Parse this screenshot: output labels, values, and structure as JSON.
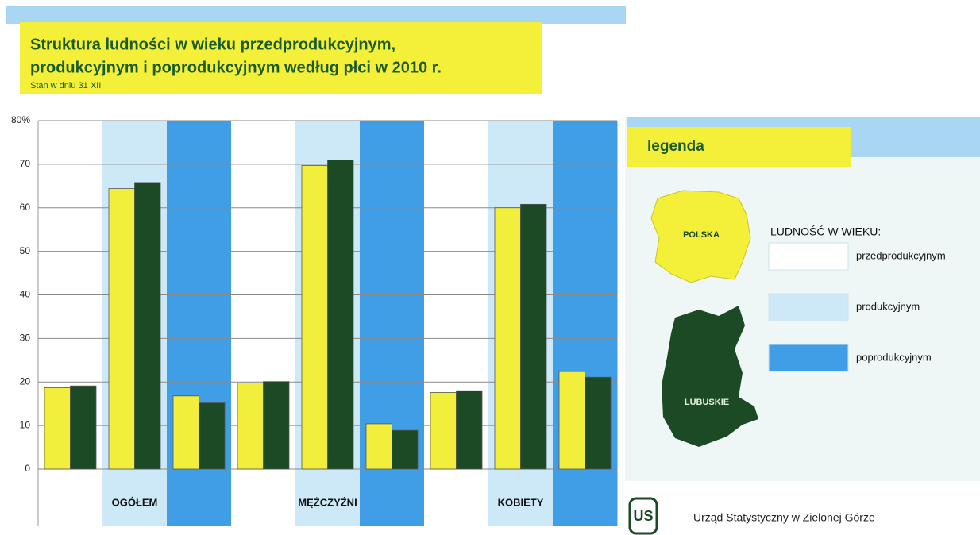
{
  "chart_data": {
    "type": "bar",
    "title_lines": [
      "Struktura ludności w wieku przedprodukcyjnym,",
      "produkcyjnym i poprodukcyjnym według płci w 2010 r."
    ],
    "subtitle": "Stan w dniu 31 XII",
    "groups": [
      "OGÓŁEM",
      "MĘŻCZYŹNI",
      "KOBIETY"
    ],
    "age_groups": [
      {
        "name": "przedprodukcyjnym",
        "color": "#ffffff"
      },
      {
        "name": "produkcyjnym",
        "color": "#cde8f6"
      },
      {
        "name": "poprodukcyjnym",
        "color": "#3f9ee6"
      }
    ],
    "series": [
      {
        "name": "POLSKA",
        "color": "#f2ee3c",
        "values": [
          18.7,
          64.4,
          16.8,
          19.8,
          69.7,
          10.4,
          17.6,
          60.0,
          22.4
        ]
      },
      {
        "name": "LUBUSKIE",
        "color": "#1b4a24",
        "values": [
          19.1,
          65.8,
          15.2,
          20.1,
          71.0,
          8.9,
          18.0,
          60.8,
          21.1
        ]
      }
    ],
    "ylim": [
      0,
      80
    ],
    "yticks": [
      0,
      10,
      20,
      30,
      40,
      50,
      60,
      70,
      {
        "value": 80,
        "label": "80%"
      }
    ],
    "grid": true,
    "legend_title": "legenda",
    "legend_heading": "LUDNOŚĆ W WIEKU:",
    "footer": "Urząd Statystyczny w Zielonej Górze",
    "logo": "US"
  }
}
